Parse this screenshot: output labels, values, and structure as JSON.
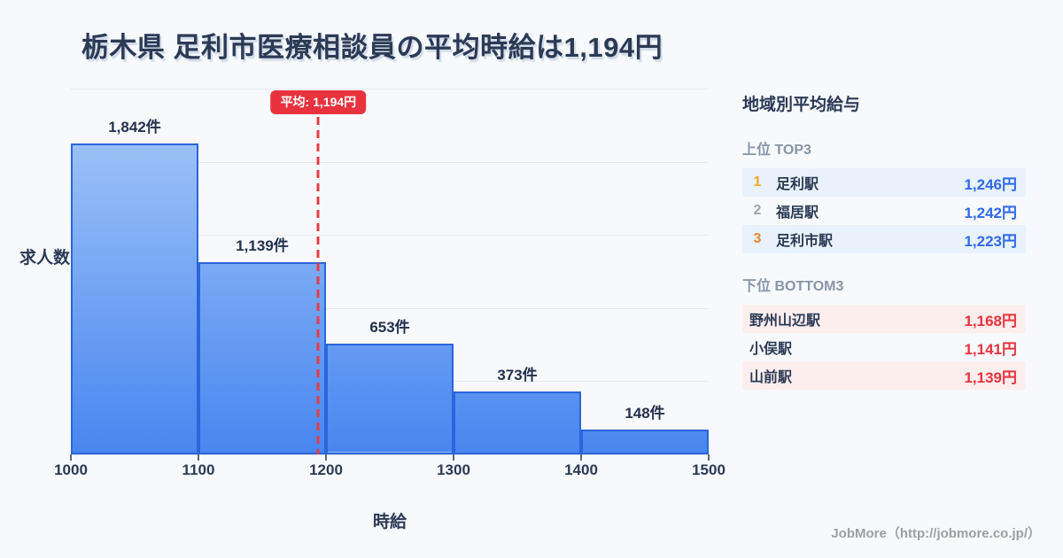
{
  "title": "栃木県 足利市医療相談員の平均時給は1,194円",
  "chart_data": {
    "type": "bar",
    "title": "栃木県 足利市医療相談員の平均時給は1,194円",
    "xlabel": "時給",
    "ylabel": "求人数",
    "categories": [
      "1000-1100",
      "1100-1200",
      "1200-1300",
      "1300-1400",
      "1400-1500"
    ],
    "values": [
      1842,
      1139,
      653,
      373,
      148
    ],
    "bar_labels": [
      "1,842件",
      "1,139件",
      "653件",
      "373件",
      "148件"
    ],
    "x_ticks": [
      "1000",
      "1100",
      "1200",
      "1300",
      "1400",
      "1500"
    ],
    "xlim": [
      1000,
      1500
    ],
    "ylim": [
      0,
      2165
    ],
    "grid": true,
    "average": 1194,
    "average_label": "平均: 1,194円"
  },
  "sidebar": {
    "title": "地域別平均給与",
    "top3": {
      "heading": "上位 TOP3",
      "rows": [
        {
          "rank": "1",
          "name": "足利駅",
          "value": "1,246円"
        },
        {
          "rank": "2",
          "name": "福居駅",
          "value": "1,242円"
        },
        {
          "rank": "3",
          "name": "足利市駅",
          "value": "1,223円"
        }
      ]
    },
    "bottom3": {
      "heading": "下位 BOTTOM3",
      "rows": [
        {
          "name": "野州山辺駅",
          "value": "1,168円"
        },
        {
          "name": "小俣駅",
          "value": "1,141円"
        },
        {
          "name": "山前駅",
          "value": "1,139円"
        }
      ]
    }
  },
  "footer": {
    "credit": "JobMore（http://jobmore.co.jp/）"
  },
  "colors": {
    "background": "#f7f9fc",
    "title_text": "#2b3a55",
    "bar_fill_top": "#aacbf8",
    "bar_fill_bottom": "#4886f0",
    "bar_border": "#2a66db",
    "grid_line": "#e4e9f1",
    "average_red": "#e8333e",
    "top_value_blue": "#2f6ae8",
    "bottom_value_red": "#e8333e",
    "rank1_gold": "#ecaa1f",
    "rank2_gray": "#9aa3b0",
    "rank3_orange": "#e2882f",
    "row_blue_bg": "#e9f1fc",
    "row_pink_bg": "#fdeeee",
    "muted_heading": "#8795a9",
    "footer_gray": "#9aa0a8"
  }
}
